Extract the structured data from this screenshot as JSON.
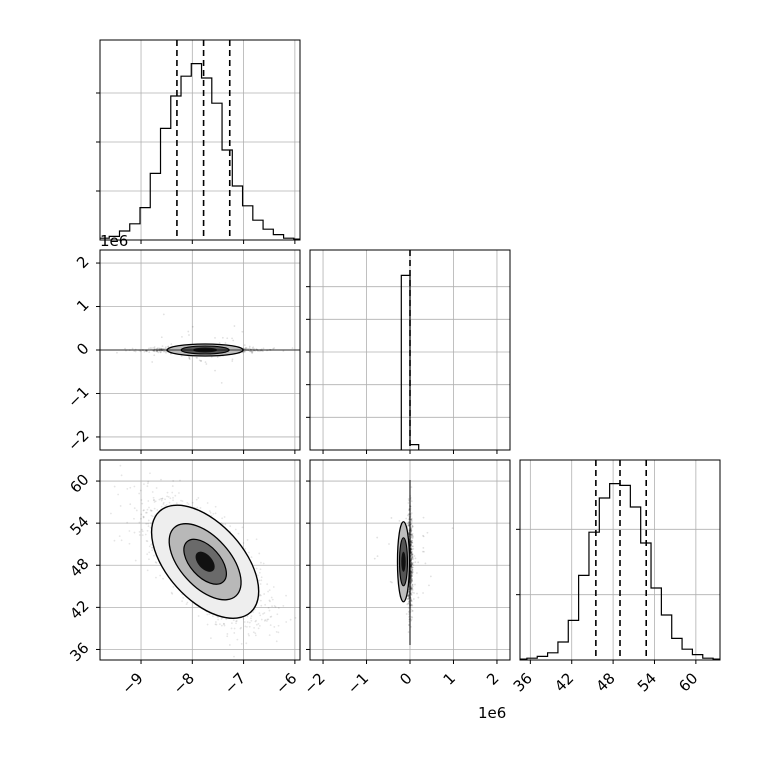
{
  "chart_data": [
    {
      "type": "histogram",
      "panel": "diag-0",
      "xlim": [
        -9.8,
        -5.9
      ],
      "yticks": 4,
      "x": [
        -9.82,
        -9.62,
        -9.42,
        -9.22,
        -9.02,
        -8.82,
        -8.62,
        -8.42,
        -8.22,
        -8.02,
        -7.82,
        -7.62,
        -7.42,
        -7.22,
        -7.02,
        -6.82,
        -6.62,
        -6.42,
        -6.22,
        -6.02
      ],
      "values": [
        1,
        2,
        5,
        9,
        18,
        37,
        62,
        80,
        91,
        98,
        90,
        76,
        50,
        30,
        19,
        11,
        6,
        3,
        1,
        0.5
      ],
      "quantiles": [
        -8.3,
        -7.78,
        -7.27
      ],
      "grid": true
    },
    {
      "type": "scatter",
      "panel": "lower-1-0",
      "xlim": [
        -9.8,
        -5.9
      ],
      "ylim": [
        -2.3,
        2.3
      ],
      "yticks": [
        -2,
        -1,
        0,
        1,
        2
      ],
      "yticklabels": [
        "−2",
        "−1",
        "0",
        "1",
        "2"
      ],
      "y_offset_label": "1e6",
      "grid": true
    },
    {
      "type": "histogram",
      "panel": "diag-1",
      "xlim": [
        -2.3,
        2.3
      ],
      "yticks": 6,
      "x": [
        -0.2,
        0.0
      ],
      "values": [
        97,
        3
      ],
      "quantiles": [
        0.0
      ],
      "grid": true
    },
    {
      "type": "scatter",
      "panel": "lower-2-0",
      "xlim": [
        -9.8,
        -5.9
      ],
      "ylim": [
        34.5,
        63
      ],
      "xticks": [
        -9,
        -8,
        -7,
        -6
      ],
      "xticklabels": [
        "−9",
        "−8",
        "−7",
        "−6"
      ],
      "yticks": [
        36,
        42,
        48,
        54,
        60
      ],
      "yticklabels": [
        "36",
        "42",
        "48",
        "54",
        "60"
      ],
      "grid": true
    },
    {
      "type": "scatter",
      "panel": "lower-2-1",
      "xlim": [
        -2.3,
        2.3
      ],
      "ylim": [
        34.5,
        63
      ],
      "xticks": [
        -2,
        -1,
        0,
        1,
        2
      ],
      "xticklabels": [
        "−2",
        "−1",
        "0",
        "1",
        "2"
      ],
      "x_offset_label": "1e6",
      "grid": true
    },
    {
      "type": "histogram",
      "panel": "diag-2",
      "xlim": [
        34.5,
        63.5
      ],
      "yticks": 3,
      "xticks": [
        36,
        42,
        48,
        54,
        60
      ],
      "xticklabels": [
        "36",
        "42",
        "48",
        "54",
        "60"
      ],
      "x": [
        34,
        35.5,
        37,
        38.5,
        40,
        41.5,
        43,
        44.5,
        46,
        47.5,
        49,
        50.5,
        52,
        53.5,
        55,
        56.5,
        58,
        59.5,
        61,
        62.5
      ],
      "values": [
        0.5,
        1,
        2,
        4,
        10,
        22,
        47,
        71,
        90,
        98,
        97,
        85,
        65,
        40,
        25,
        12,
        6,
        3,
        1,
        0.5
      ],
      "quantiles": [
        45.5,
        49.0,
        52.8
      ],
      "grid": true
    }
  ]
}
